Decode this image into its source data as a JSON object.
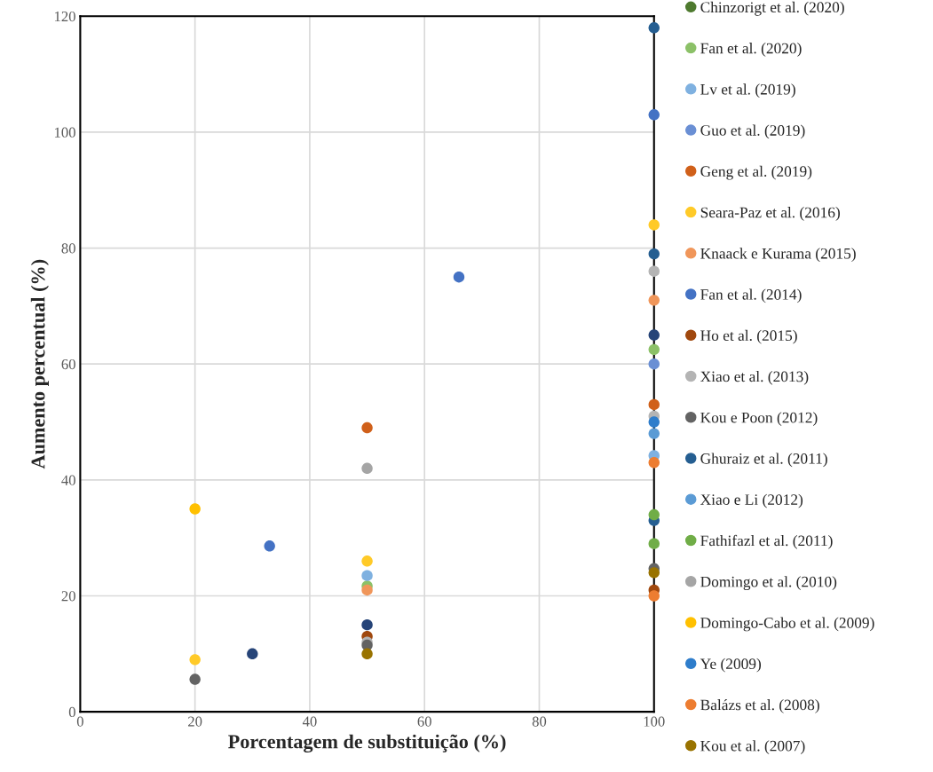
{
  "chart_data": {
    "type": "scatter",
    "xlabel": "Porcentagem de substituição (%)",
    "ylabel": "Aumento percentual (%)",
    "xlim": [
      0,
      100
    ],
    "xticks": [
      0,
      20,
      40,
      60,
      80,
      100
    ],
    "ylim": [
      0,
      120
    ],
    "yticks": [
      0,
      20,
      40,
      60,
      80,
      100,
      120
    ],
    "grid": true,
    "legend": "right",
    "marker": "circle",
    "series": [
      {
        "name": "Chinzorigt et al. (2020)",
        "color": "#4e7a2f"
      },
      {
        "name": "Fan et al. (2020)",
        "color": "#8cc168",
        "x": [
          100,
          50
        ],
        "values": [
          62.5,
          21.7
        ]
      },
      {
        "name": "Lv et al. (2019)",
        "color": "#7fb1e0",
        "x": [
          100,
          50
        ],
        "values": [
          44.2,
          23.5
        ]
      },
      {
        "name": "Guo et al. (2019)",
        "color": "#6a8fd4",
        "x": [
          100
        ],
        "values": [
          60
        ]
      },
      {
        "name": "Geng et al. (2019)",
        "color": "#d0601a",
        "x": [
          100,
          50
        ],
        "values": [
          53,
          49
        ]
      },
      {
        "name": "Seara-Paz et al. (2016)",
        "color": "#ffca28",
        "x": [
          100,
          50,
          20
        ],
        "values": [
          84,
          26,
          9
        ]
      },
      {
        "name": "Knaack e Kurama (2015)",
        "color": "#f0965a",
        "x": [
          100,
          50
        ],
        "values": [
          71,
          21
        ]
      },
      {
        "name": "Fan et al. (2014)",
        "color": "#4472c4",
        "x": [
          100,
          33,
          66
        ],
        "values": [
          103,
          28.6,
          75
        ]
      },
      {
        "name": "Ho et al. (2015)",
        "color": "#a0480e",
        "x": [
          100,
          50
        ],
        "values": [
          21,
          13
        ]
      },
      {
        "name": "Xiao et al. (2013)",
        "color": "#b4b4b4",
        "x": [
          100,
          100,
          50
        ],
        "values": [
          76,
          51,
          12
        ]
      },
      {
        "name": "Kou e Poon (2012)",
        "color": "#636363",
        "x": [
          100,
          50,
          20
        ],
        "values": [
          24.7,
          11.5,
          5.6
        ]
      },
      {
        "name": "Ghuraiz et al. (2011)",
        "color": "#255e91",
        "x": [
          100,
          100,
          100
        ],
        "values": [
          118,
          79,
          33
        ]
      },
      {
        "name": "Xiao e Li (2012)",
        "color": "#5b9bd5",
        "x": [
          100
        ],
        "values": [
          48
        ]
      },
      {
        "name": "Fathifazl et al. (2011)",
        "color": "#70ad47",
        "x": [
          100,
          100
        ],
        "values": [
          34,
          29
        ]
      },
      {
        "name": "Domingo et al. (2010)",
        "color": "#a5a5a5",
        "x": [
          50
        ],
        "values": [
          42
        ]
      },
      {
        "name": "Domingo-Cabo et al. (2009)",
        "color": "#ffc000",
        "x": [
          20
        ],
        "values": [
          35
        ]
      },
      {
        "name": "Ye (2009)",
        "color": "#2e7dcb",
        "x": [
          100
        ],
        "values": [
          50
        ]
      },
      {
        "name": "Balázs et al. (2008)",
        "color": "#ed7d31",
        "x": [
          100,
          100
        ],
        "values": [
          43,
          20
        ]
      },
      {
        "name": "Kou et al. (2007)",
        "color": "#997300",
        "x": [
          100,
          50
        ],
        "values": [
          24,
          10
        ]
      },
      {
        "color": "#264478",
        "x": [
          30,
          50,
          100
        ],
        "values": [
          10,
          15,
          65
        ]
      }
    ]
  }
}
